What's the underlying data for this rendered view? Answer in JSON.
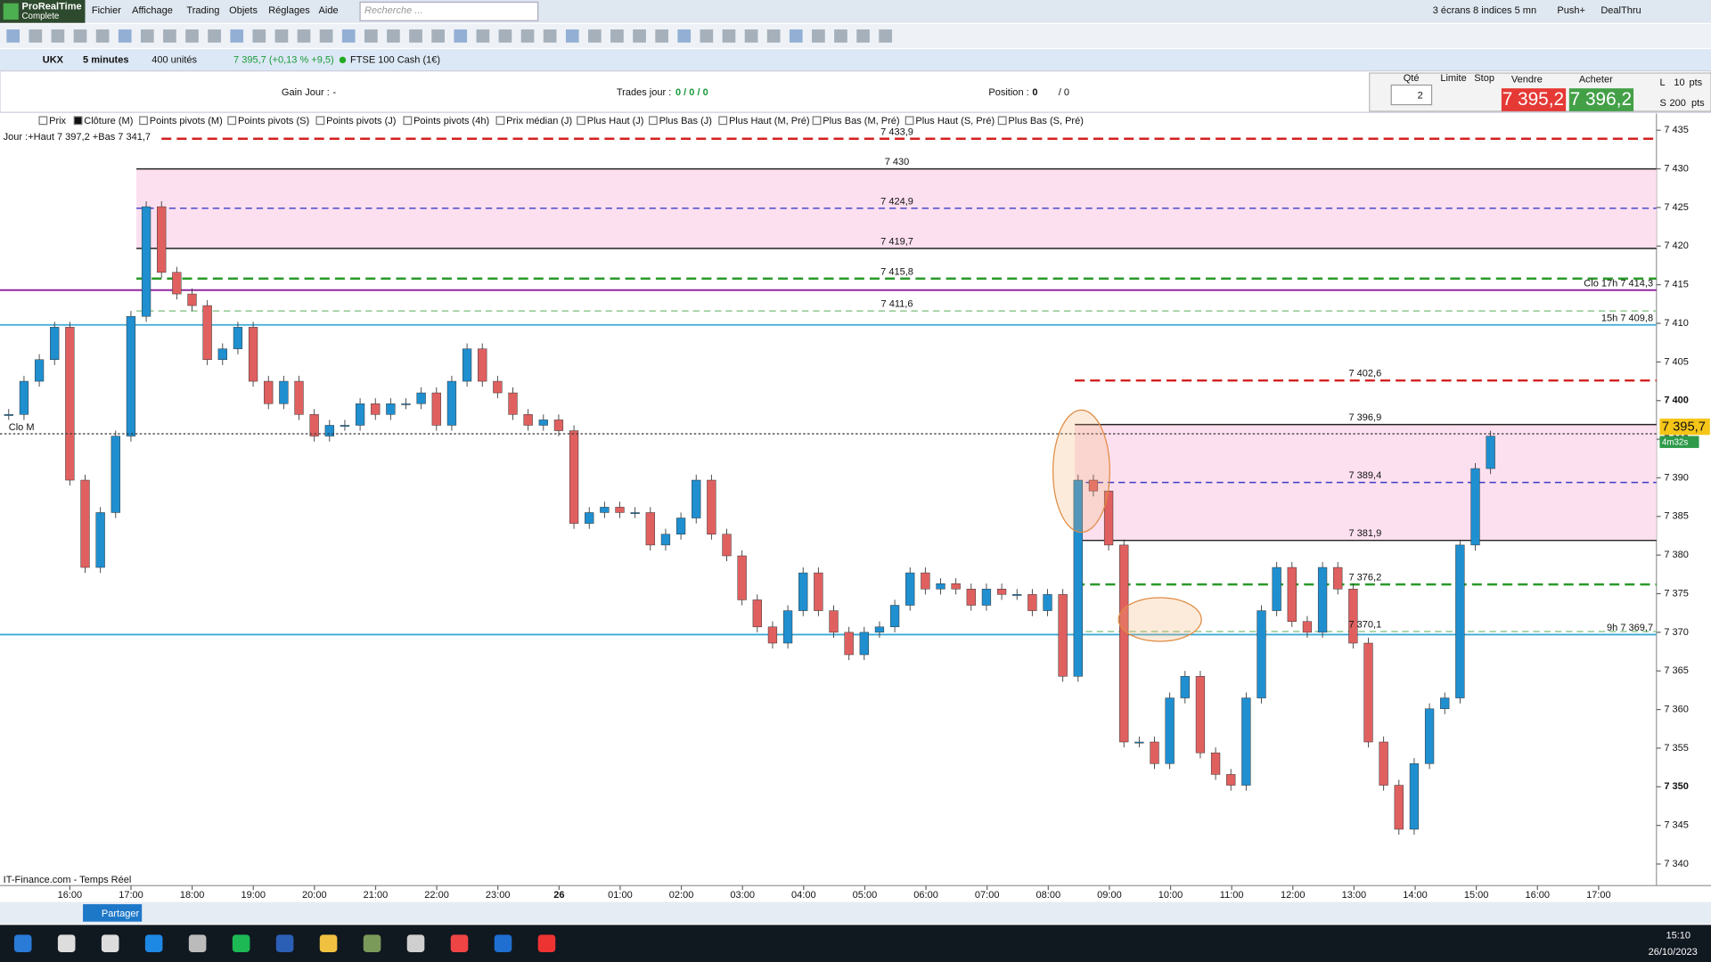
{
  "app": {
    "logo": "ProRealTime",
    "edition": "Complete",
    "search": "Recherche ...",
    "menu": [
      "Fichier",
      "Affichage",
      "Trading",
      "Objets",
      "Réglages",
      "Aide"
    ],
    "top_right": [
      "3 écrans 8 indices 5 mn",
      "Push+",
      "DealThru"
    ]
  },
  "instrument": {
    "ticker": "UKX",
    "period": "5 minutes",
    "units": "400 unités",
    "quote": "7 395,7 (+0,13 % +9,5)",
    "name": "FTSE 100 Cash (1€)"
  },
  "info": {
    "gain_label": "Gain Jour :",
    "gain_value": "-",
    "trades_label": "Trades jour :",
    "trades_value": "0 / 0 / 0",
    "position_label": "Position :",
    "position_value": "0",
    "position_extra": "/ 0"
  },
  "order": {
    "qty_label": "Qté",
    "qty": "2",
    "limit": "Limite",
    "stop": "Stop",
    "sell_label": "Vendre",
    "buy_label": "Acheter",
    "sell": "7 395,2",
    "buy": "7 396,2",
    "l": "L",
    "l_value": "10",
    "l_unit": "pts",
    "s": "S",
    "s_value": "200",
    "s_unit": "pts"
  },
  "tabs": [
    "Prix",
    "Clôture (M)",
    "Points pivots (M)",
    "Points pivots (S)",
    "Points pivots (J)",
    "Points pivots (4h)",
    "Prix médian (J)",
    "Plus Haut (J)",
    "Plus Bas (J)",
    "Plus Haut (M, Pré)",
    "Plus Bas (M, Pré)",
    "Plus Haut (S, Pré)",
    "Plus Bas (S, Pré)"
  ],
  "chart": {
    "type": "candlestick",
    "day_info": "Jour :+Haut 7 397,2 +Bas 7 341,7",
    "source": "IT-Finance.com - Temps Réel",
    "clo_m": "Clo M",
    "ylim": [
      7337.2,
      7435.2
    ],
    "yticks": [
      {
        "value": 7340,
        "label": "7 340"
      },
      {
        "value": 7345,
        "label": "7 345"
      },
      {
        "value": 7350,
        "label": "7 350"
      },
      {
        "value": 7355,
        "label": "7 355"
      },
      {
        "value": 7360,
        "label": "7 360"
      },
      {
        "value": 7365,
        "label": "7 365"
      },
      {
        "value": 7370,
        "label": "7 370"
      },
      {
        "value": 7375,
        "label": "7 375"
      },
      {
        "value": 7380,
        "label": "7 380"
      },
      {
        "value": 7385,
        "label": "7 385"
      },
      {
        "value": 7390,
        "label": "7 390"
      },
      {
        "value": 7395,
        "label": "7 395"
      },
      {
        "value": 7400,
        "label": "7 400"
      },
      {
        "value": 7405,
        "label": "7 405"
      },
      {
        "value": 7410,
        "label": "7 410"
      },
      {
        "value": 7415,
        "label": "7 415"
      },
      {
        "value": 7420,
        "label": "7 420"
      },
      {
        "value": 7425,
        "label": "7 425"
      },
      {
        "value": 7430,
        "label": "7 430"
      },
      {
        "value": 7435,
        "label": "7 435"
      }
    ],
    "xticks": [
      "16:00",
      "17:00",
      "18:00",
      "19:00",
      "20:00",
      "21:00",
      "22:00",
      "23:00",
      "26",
      "01:00",
      "02:00",
      "03:00",
      "04:00",
      "05:00",
      "06:00",
      "07:00",
      "08:00",
      "09:00",
      "10:00",
      "11:00",
      "12:00",
      "13:00",
      "14:00",
      "15:00",
      "16:00",
      "17:00"
    ],
    "up_color": "#1f8fd0",
    "down_color": "#e06060",
    "closes": [
      7398.2,
      7402.5,
      7405.3,
      7409.5,
      7389.7,
      7378.4,
      7385.5,
      7395.4,
      7410.9,
      7425.1,
      7416.6,
      7413.8,
      7412.3,
      7405.3,
      7406.7,
      7409.5,
      7402.5,
      7399.6,
      7402.5,
      7398.2,
      7395.4,
      7396.8,
      7396.8,
      7399.6,
      7398.2,
      7399.6,
      7399.6,
      7401.0,
      7396.8,
      7402.5,
      7406.7,
      7402.5,
      7401.0,
      7398.2,
      7396.8,
      7397.5,
      7396.1,
      7384.1,
      7385.5,
      7386.2,
      7385.5,
      7385.5,
      7381.3,
      7382.7,
      7384.8,
      7389.7,
      7382.7,
      7379.9,
      7374.2,
      7370.7,
      7368.6,
      7372.8,
      7377.7,
      7372.8,
      7370.0,
      7367.1,
      7370.0,
      7370.7,
      7373.5,
      7377.7,
      7375.6,
      7376.3,
      7375.6,
      7373.5,
      7375.6,
      7374.9,
      7374.9,
      7372.8,
      7374.9,
      7364.3,
      7389.7,
      7388.3,
      7381.3,
      7355.8,
      7355.8,
      7353.0,
      7361.5,
      7364.3,
      7354.4,
      7351.6,
      7350.2,
      7361.5,
      7372.8,
      7378.4,
      7371.4,
      7370.0,
      7378.4,
      7375.6,
      7368.6,
      7355.8,
      7350.2,
      7344.5,
      7353.0,
      7360.1,
      7361.5,
      7381.3,
      7391.2,
      7395.4
    ],
    "zones": [
      {
        "top": 7430,
        "bottom": 7419.7,
        "color": "#fde0ef"
      },
      {
        "top": 7396.9,
        "bottom": 7381.9,
        "color": "#fde0ef"
      }
    ],
    "levels": [
      {
        "value": 7433.9,
        "label": "7 433,9",
        "color": "#d42020",
        "dash": "long"
      },
      {
        "value": 7430,
        "label": "7 430",
        "color": "#222222",
        "dash": "solid"
      },
      {
        "value": 7424.9,
        "label": "7 424,9",
        "color": "#3a3ac8",
        "dash": "medium"
      },
      {
        "value": 7419.7,
        "label": "7 419,7",
        "color": "#222222",
        "dash": "solid"
      },
      {
        "value": 7415.8,
        "label": "7 415,8",
        "color": "#2a9a2a",
        "dash": "long"
      },
      {
        "value": 7411.6,
        "label": "7 411,6",
        "color": "#90c890",
        "dash": "medium"
      },
      {
        "value": 7402.6,
        "label": "7 402,6",
        "color": "#d42020",
        "dash": "long"
      },
      {
        "value": 7396.9,
        "label": "7 396,9",
        "color": "#222222",
        "dash": "solid"
      },
      {
        "value": 7389.4,
        "label": "7 389,4",
        "color": "#3a3ac8",
        "dash": "medium"
      },
      {
        "value": 7381.9,
        "label": "7 381,9",
        "color": "#222222",
        "dash": "solid"
      },
      {
        "value": 7376.2,
        "label": "7 376,2",
        "color": "#2a9a2a",
        "dash": "long"
      },
      {
        "value": 7370.1,
        "label": "7 370,1",
        "color": "#90c890",
        "dash": "medium"
      }
    ],
    "side_lines": [
      {
        "value": 7414.3,
        "label": "Clo 17h 7 414,3",
        "color": "#8a1a9a"
      },
      {
        "value": 7409.8,
        "label": "15h 7 409,8",
        "color": "#3aaad8"
      },
      {
        "value": 7369.7,
        "label": "9h 7 369,7",
        "color": "#3aaad8"
      }
    ],
    "last": {
      "value": 7395.7,
      "label": "7 395,7",
      "timer": "4m32s"
    }
  },
  "taskbar": {
    "time": "15:10",
    "date": "26/10/2023"
  },
  "bottom": {
    "share": "Partager"
  }
}
